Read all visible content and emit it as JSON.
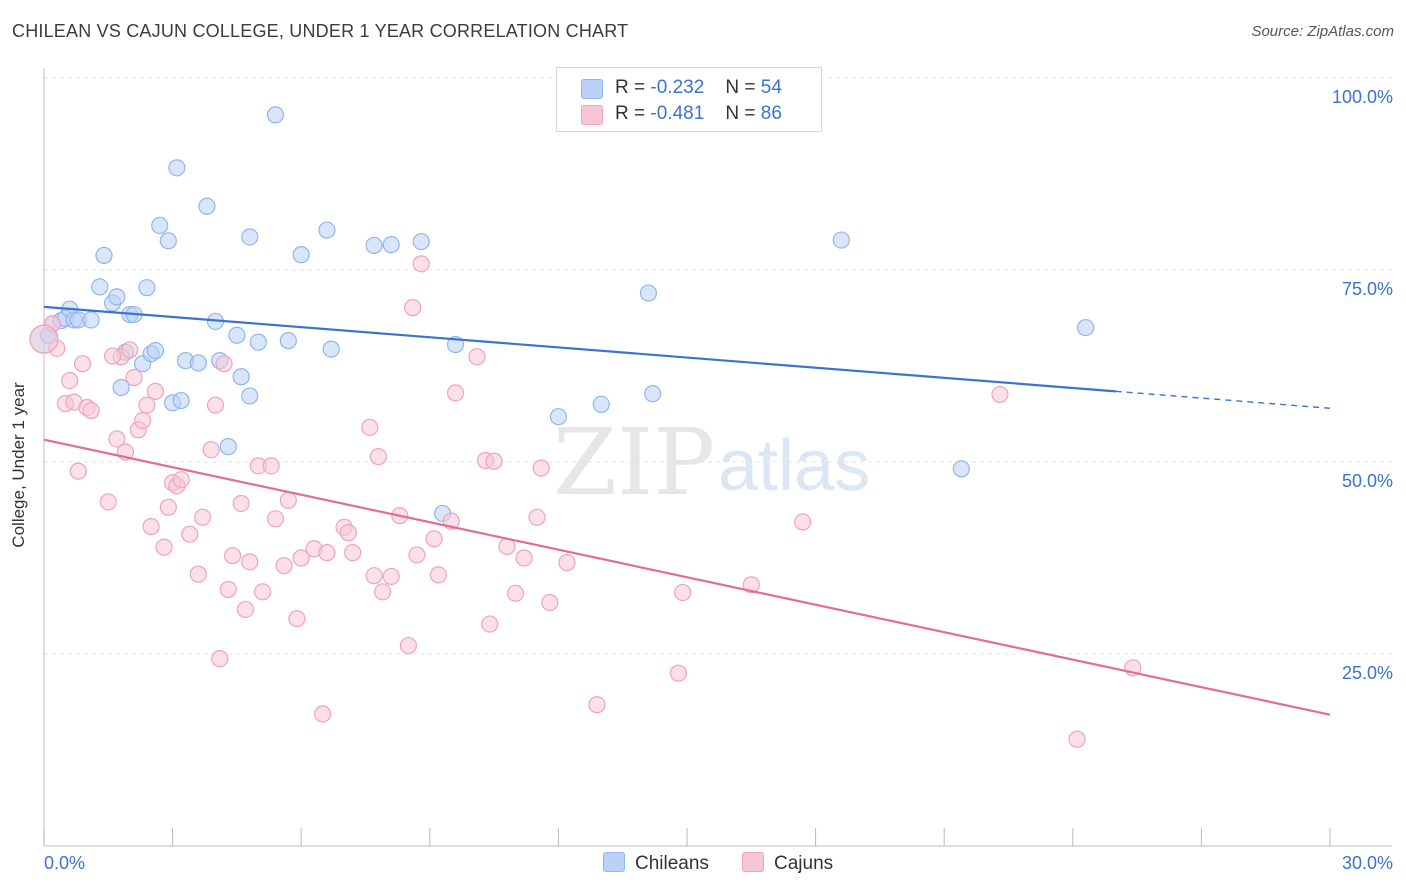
{
  "title": "CHILEAN VS CAJUN COLLEGE, UNDER 1 YEAR CORRELATION CHART",
  "source": "Source: ZipAtlas.com",
  "watermark": {
    "zip": "ZIP",
    "atlas": "atlas"
  },
  "legend": {
    "r_label": "R =",
    "n_label": "N =",
    "series": [
      {
        "name": "Chileans",
        "r": "-0.232",
        "n": "54",
        "color": "#8fb6ee",
        "fill": "#b9d2f5",
        "line": "#3a73d0"
      },
      {
        "name": "Cajuns",
        "r": "-0.481",
        "n": "86",
        "color": "#f0a3bb",
        "fill": "#f7c6d5",
        "line": "#e26c96"
      }
    ]
  },
  "chart_data": {
    "type": "scatter",
    "title": "CHILEAN VS CAJUN COLLEGE, UNDER 1 YEAR CORRELATION CHART",
    "xlabel": "",
    "ylabel": "College, Under 1 year",
    "xlim": [
      0,
      30
    ],
    "ylim": [
      0,
      105
    ],
    "x_tick_labels": [
      "0.0%",
      "30.0%"
    ],
    "y_ticks": [
      25,
      50,
      75,
      100
    ],
    "y_tick_labels": [
      "25.0%",
      "50.0%",
      "75.0%",
      "100.0%"
    ],
    "grid": true,
    "series": [
      {
        "name": "Chileans",
        "trend": {
          "x": [
            0,
            25
          ],
          "y": [
            70.2,
            59.2
          ],
          "dashed_to": [
            30,
            57.0
          ]
        },
        "points": [
          [
            0.1,
            66.5
          ],
          [
            0.2,
            68.0
          ],
          [
            0.4,
            68.4
          ],
          [
            0.5,
            68.7
          ],
          [
            0.6,
            69.9
          ],
          [
            0.7,
            68.5
          ],
          [
            0.8,
            68.5
          ],
          [
            1.1,
            68.5
          ],
          [
            1.3,
            72.8
          ],
          [
            1.4,
            76.9
          ],
          [
            1.6,
            70.7
          ],
          [
            1.7,
            71.5
          ],
          [
            1.8,
            59.7
          ],
          [
            1.9,
            64.3
          ],
          [
            2.0,
            69.2
          ],
          [
            2.1,
            69.2
          ],
          [
            2.3,
            62.8
          ],
          [
            2.4,
            72.7
          ],
          [
            2.5,
            64.1
          ],
          [
            2.6,
            64.5
          ],
          [
            2.7,
            80.8
          ],
          [
            2.9,
            78.8
          ],
          [
            3.0,
            57.7
          ],
          [
            3.1,
            88.3
          ],
          [
            3.2,
            58.0
          ],
          [
            3.3,
            63.2
          ],
          [
            3.6,
            62.9
          ],
          [
            3.8,
            83.3
          ],
          [
            4.0,
            68.3
          ],
          [
            4.1,
            63.2
          ],
          [
            4.3,
            52.0
          ],
          [
            4.5,
            66.5
          ],
          [
            4.6,
            61.1
          ],
          [
            4.8,
            79.3
          ],
          [
            4.8,
            58.6
          ],
          [
            5.0,
            65.6
          ],
          [
            5.4,
            95.2
          ],
          [
            5.7,
            65.8
          ],
          [
            6.0,
            77.0
          ],
          [
            6.6,
            80.2
          ],
          [
            6.7,
            64.7
          ],
          [
            7.7,
            78.2
          ],
          [
            8.1,
            78.3
          ],
          [
            8.8,
            78.7
          ],
          [
            9.3,
            43.3
          ],
          [
            9.6,
            65.3
          ],
          [
            12.0,
            55.9
          ],
          [
            13.0,
            57.5
          ],
          [
            14.1,
            72.0
          ],
          [
            14.2,
            58.9
          ],
          [
            18.6,
            78.9
          ],
          [
            21.4,
            49.1
          ],
          [
            24.3,
            67.5
          ],
          [
            0.0,
            66.0
          ]
        ]
      },
      {
        "name": "Cajuns",
        "trend": {
          "x": [
            0,
            30
          ],
          "y": [
            52.9,
            17.1
          ]
        },
        "points": [
          [
            0.2,
            68.0
          ],
          [
            0.3,
            64.8
          ],
          [
            0.5,
            57.6
          ],
          [
            0.6,
            60.6
          ],
          [
            0.7,
            57.8
          ],
          [
            0.8,
            48.8
          ],
          [
            0.9,
            62.8
          ],
          [
            1.0,
            57.1
          ],
          [
            1.1,
            56.7
          ],
          [
            1.5,
            44.8
          ],
          [
            1.7,
            53.0
          ],
          [
            1.8,
            63.7
          ],
          [
            1.9,
            51.3
          ],
          [
            2.0,
            64.6
          ],
          [
            2.1,
            61.0
          ],
          [
            2.2,
            54.2
          ],
          [
            2.3,
            55.4
          ],
          [
            2.4,
            57.4
          ],
          [
            2.5,
            41.6
          ],
          [
            2.6,
            59.2
          ],
          [
            2.8,
            38.9
          ],
          [
            2.9,
            44.1
          ],
          [
            3.0,
            47.3
          ],
          [
            3.1,
            46.9
          ],
          [
            3.2,
            47.7
          ],
          [
            3.4,
            40.6
          ],
          [
            3.6,
            35.4
          ],
          [
            3.7,
            42.8
          ],
          [
            3.9,
            51.6
          ],
          [
            4.0,
            57.4
          ],
          [
            4.1,
            24.4
          ],
          [
            4.2,
            62.8
          ],
          [
            4.3,
            33.4
          ],
          [
            4.4,
            37.8
          ],
          [
            4.6,
            44.6
          ],
          [
            4.7,
            30.8
          ],
          [
            4.8,
            37.0
          ],
          [
            5.0,
            49.5
          ],
          [
            5.1,
            33.1
          ],
          [
            5.3,
            49.5
          ],
          [
            5.4,
            42.6
          ],
          [
            5.6,
            36.5
          ],
          [
            5.7,
            45.0
          ],
          [
            5.9,
            29.6
          ],
          [
            6.0,
            37.5
          ],
          [
            6.3,
            38.7
          ],
          [
            6.5,
            17.2
          ],
          [
            6.6,
            38.2
          ],
          [
            7.0,
            41.5
          ],
          [
            7.1,
            40.8
          ],
          [
            7.2,
            38.2
          ],
          [
            7.6,
            54.5
          ],
          [
            7.7,
            35.2
          ],
          [
            7.8,
            50.7
          ],
          [
            7.9,
            33.1
          ],
          [
            8.1,
            35.1
          ],
          [
            8.3,
            43.0
          ],
          [
            8.5,
            26.1
          ],
          [
            8.6,
            70.1
          ],
          [
            8.7,
            37.9
          ],
          [
            8.8,
            75.8
          ],
          [
            9.1,
            40.0
          ],
          [
            9.2,
            35.3
          ],
          [
            9.5,
            42.3
          ],
          [
            9.6,
            59.0
          ],
          [
            10.1,
            63.7
          ],
          [
            10.3,
            50.2
          ],
          [
            10.4,
            28.9
          ],
          [
            10.5,
            50.1
          ],
          [
            10.8,
            39.0
          ],
          [
            11.0,
            32.9
          ],
          [
            11.2,
            37.5
          ],
          [
            11.5,
            42.8
          ],
          [
            11.6,
            49.2
          ],
          [
            11.8,
            31.7
          ],
          [
            12.2,
            36.9
          ],
          [
            12.9,
            18.4
          ],
          [
            14.8,
            22.5
          ],
          [
            14.9,
            33.0
          ],
          [
            16.5,
            34.0
          ],
          [
            17.7,
            42.2
          ],
          [
            22.3,
            58.8
          ],
          [
            24.1,
            13.9
          ],
          [
            25.4,
            23.2
          ],
          [
            1.6,
            63.8
          ],
          [
            0.0,
            66.0
          ]
        ]
      }
    ]
  }
}
